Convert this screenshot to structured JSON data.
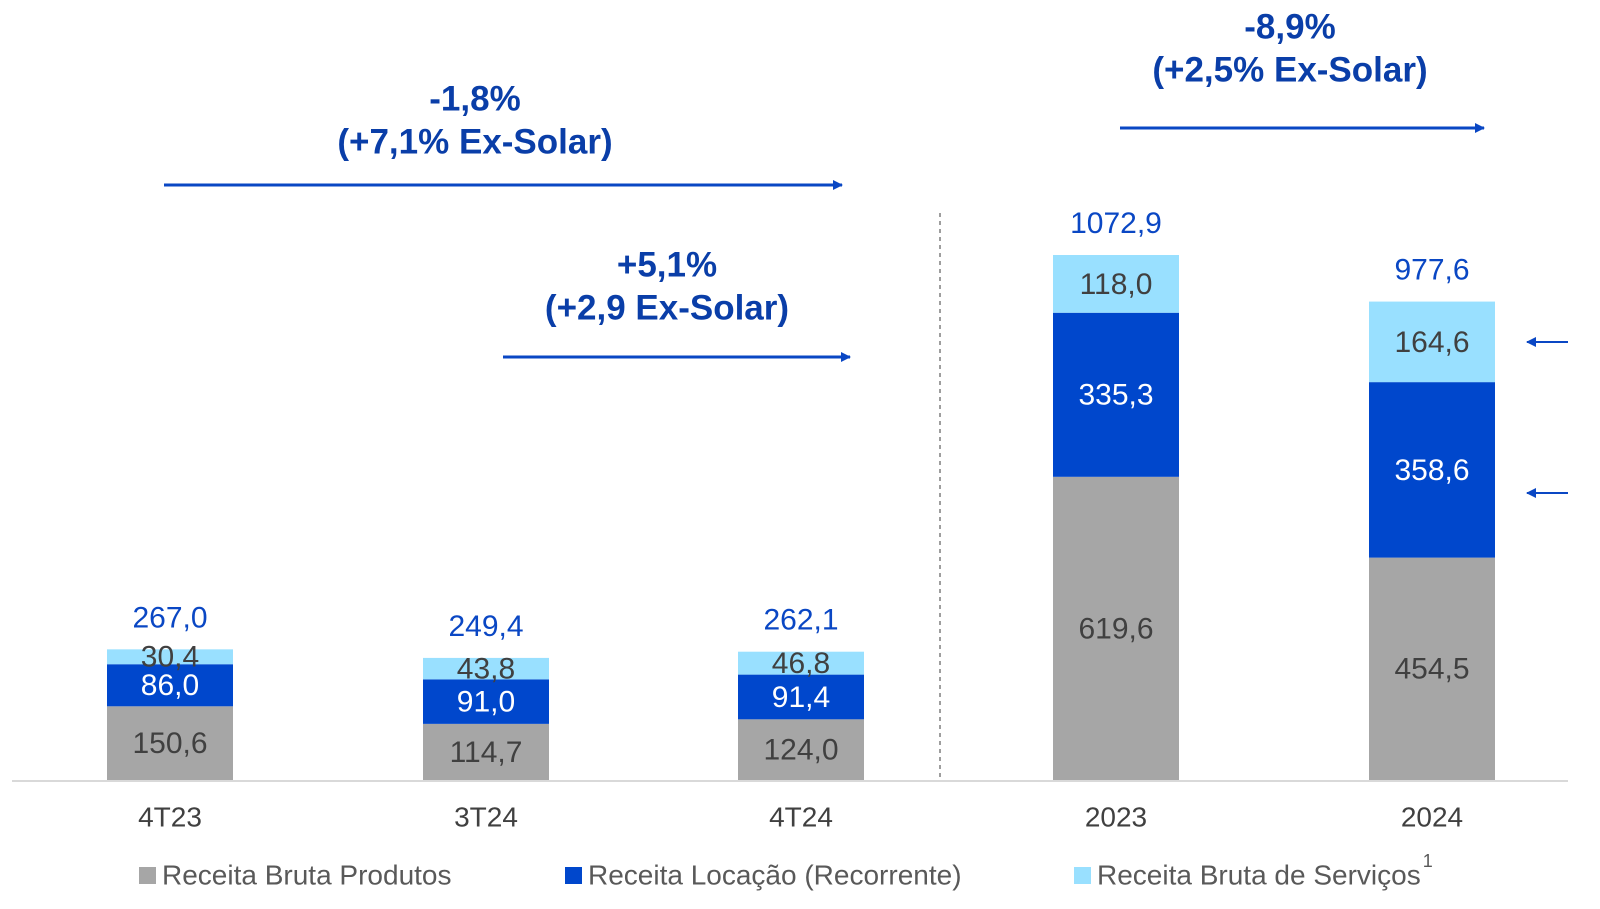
{
  "chart_data": {
    "type": "stacked_bar",
    "categories": [
      "4T23",
      "3T24",
      "4T24",
      "2023",
      "2024"
    ],
    "series": [
      {
        "name": "Receita Bruta Produtos",
        "color": "#a6a6a6",
        "values": [
          150.6,
          114.7,
          124.0,
          619.6,
          454.5
        ],
        "value_labels": [
          "150,6",
          "114,7",
          "124,0",
          "619,6",
          "454,5"
        ]
      },
      {
        "name": "Receita Locação (Recorrente)",
        "color": "#0047cc",
        "values": [
          86.0,
          91.0,
          91.4,
          335.3,
          358.6
        ],
        "value_labels": [
          "86,0",
          "91,0",
          "91,4",
          "335,3",
          "358,6"
        ]
      },
      {
        "name": "Receita Bruta de Serviços",
        "color": "#99e0ff",
        "values": [
          30.4,
          43.8,
          46.8,
          118.0,
          164.6
        ],
        "value_labels": [
          "30,4",
          "43,8",
          "46,8",
          "118,0",
          "164,6"
        ]
      }
    ],
    "totals": [
      267.0,
      249.4,
      262.1,
      1072.9,
      977.6
    ],
    "total_labels": [
      "267,0",
      "249,4",
      "262,1",
      "1072,9",
      "977,6"
    ],
    "legend_footnote": "1",
    "annotations": [
      {
        "lines": [
          "-1,8%",
          "(+7,1% Ex-Solar)"
        ]
      },
      {
        "lines": [
          "+5,1%",
          "(+2,9 Ex-Solar)"
        ]
      },
      {
        "lines": [
          "-8,9%",
          "(+2,5% Ex-Solar)"
        ]
      }
    ]
  }
}
